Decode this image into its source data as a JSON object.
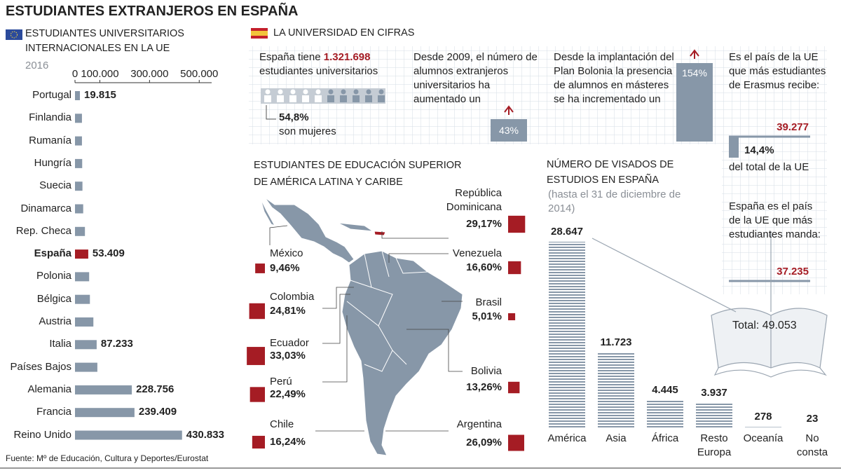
{
  "title": "ESTUDIANTES EXTRANJEROS EN ESPAÑA",
  "source": "Fuente: Mº de Educación, Cultura y Deportes/Eurostat",
  "cifras": {
    "title": "LA UNIVERSIDAD EN CIFRAS",
    "box1": {
      "before": "España tiene",
      "figure": "1.321.698",
      "after": "estudiantes universitarios",
      "share": "54,8%",
      "share_text": "son mujeres"
    },
    "box2": {
      "text": "Desde 2009, el número de alumnos extranjeros universitarios ha aumentado un",
      "figure": "43%"
    },
    "box3": {
      "text": "Desde la implantación del Plan Bolonia la presencia de alumnos en másteres se ha incrementado un",
      "figure": "154%"
    },
    "box4": {
      "text": "Es el país de la UE que más estudiantes de Erasmus recibe:",
      "figure": "39.277",
      "share": "14,4%",
      "share_text": "del total de la UE"
    },
    "box5": {
      "text": "España es el país de la UE que más estudiantes manda:",
      "figure": "37.235"
    }
  },
  "chart_data": [
    {
      "type": "hbar",
      "title": "ESTUDIANTES UNIVERSITARIOS INTERNACIONALES EN LA UE",
      "subtitle": "2016",
      "categories": [
        "Portugal",
        "Finlandia",
        "Rumanía",
        "Hungría",
        "Suecia",
        "Dinamarca",
        "Rep. Checa",
        "España",
        "Polonia",
        "Bélgica",
        "Austria",
        "Italia",
        "Países Bajos",
        "Alemania",
        "Francia",
        "Reino Unido"
      ],
      "values": [
        19815,
        28000,
        28000,
        29000,
        30000,
        33000,
        40000,
        53409,
        57000,
        60000,
        74000,
        87233,
        90000,
        228756,
        239409,
        430833
      ],
      "value_labels": [
        "19.815",
        null,
        null,
        null,
        null,
        null,
        null,
        "53.409",
        null,
        null,
        null,
        "87.233",
        null,
        "228.756",
        "239.409",
        "430.833"
      ],
      "color": "#8797a8",
      "highlight": "España",
      "highlight_color": "#a51c24",
      "xlim": [
        0,
        550000
      ],
      "xticks": [
        0,
        {
          "value": 100000,
          "label": "100.000"
        },
        {
          "value": 300000,
          "label": "300.000"
        },
        {
          "value": 500000,
          "label": "500.000"
        }
      ]
    },
    {
      "type": "square",
      "title": "ESTUDIANTES DE EDUCACIÓN SUPERIOR DE AMÉRICA LATINA Y CARIBE",
      "categories": [
        "México",
        "Colombia",
        "Ecuador",
        "Perú",
        "Chile",
        "República Dominicana",
        "Venezuela",
        "Brasil",
        "Bolivia",
        "Argentina"
      ],
      "values": [
        9.46,
        24.81,
        33.03,
        22.49,
        16.24,
        29.17,
        16.6,
        5.01,
        13.26,
        26.09
      ],
      "value_labels": [
        "9,46%",
        "24,81%",
        "33,03%",
        "22,49%",
        "16,24%",
        "29,17%",
        "16,60%",
        "5,01%",
        "13,26%",
        "26,09%"
      ],
      "color": "#a51c24"
    },
    {
      "type": "bar",
      "title": "NÚMERO DE VISADOS DE ESTUDIOS EN ESPAÑA",
      "subtitle": "(hasta el 31 de diciembre de 2014)",
      "categories": [
        "América",
        "Asia",
        "África",
        "Resto Europa",
        "Oceanía",
        "No consta"
      ],
      "values": [
        28647,
        11723,
        4445,
        3937,
        278,
        23
      ],
      "value_labels": [
        "28.647",
        "11.723",
        "4.445",
        "3.937",
        "278",
        "23"
      ],
      "total_label": "Total: 49.053",
      "color": "#8797a8"
    }
  ]
}
